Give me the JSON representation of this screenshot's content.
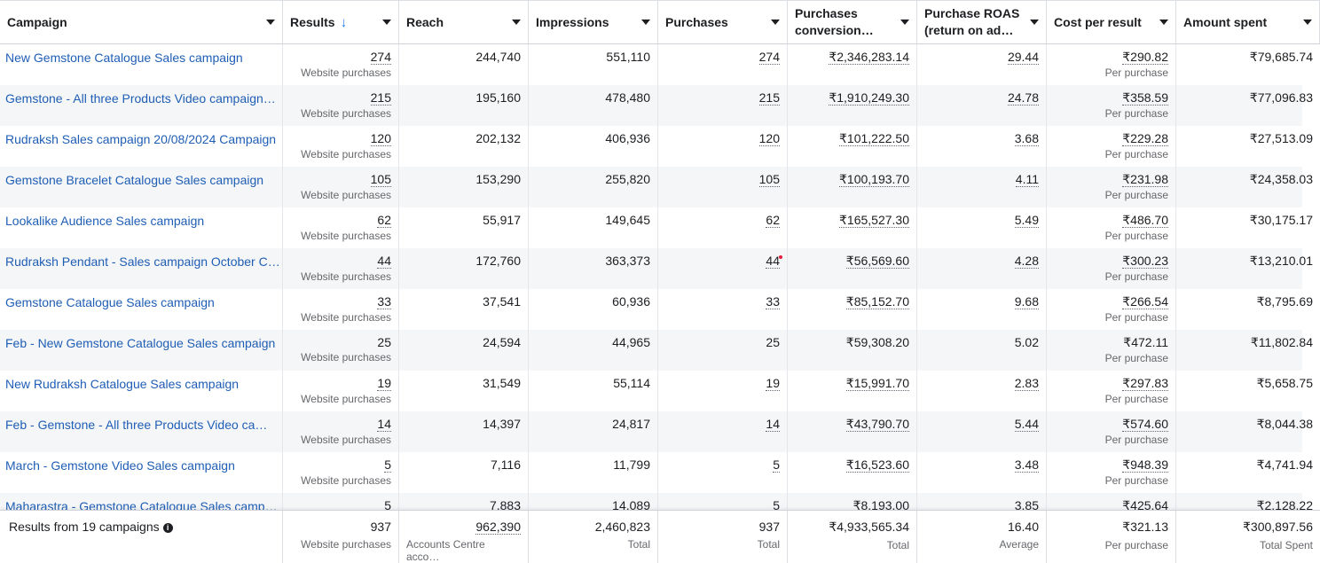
{
  "columns": [
    {
      "label": "Campaign"
    },
    {
      "label": "Results",
      "sort": "↓"
    },
    {
      "label": "Reach"
    },
    {
      "label": "Impressions"
    },
    {
      "label": "Purchases"
    },
    {
      "label": "Purchases conversion…"
    },
    {
      "label": "Purchase ROAS (return on ad…"
    },
    {
      "label": "Cost per result"
    },
    {
      "label": "Amount spent"
    }
  ],
  "rows": [
    {
      "campaign": "New Gemstone Catalogue Sales campaign",
      "results": "274",
      "results_sub": "Website purchases",
      "reach": "244,740",
      "impressions": "551,110",
      "purchases": "274",
      "conv": "₹2,346,283.14",
      "roas": "29.44",
      "cpr": "₹290.82",
      "cpr_sub": "Per purchase",
      "spent": "₹79,685.74"
    },
    {
      "campaign": "Gemstone - All three Products Video campaign…",
      "results": "215",
      "results_sub": "Website purchases",
      "reach": "195,160",
      "impressions": "478,480",
      "purchases": "215",
      "conv": "₹1,910,249.30",
      "roas": "24.78",
      "cpr": "₹358.59",
      "cpr_sub": "Per purchase",
      "spent": "₹77,096.83"
    },
    {
      "campaign": "Rudraksh Sales campaign 20/08/2024 Campaign",
      "results": "120",
      "results_sub": "Website purchases",
      "reach": "202,132",
      "impressions": "406,936",
      "purchases": "120",
      "conv": "₹101,222.50",
      "roas": "3.68",
      "cpr": "₹229.28",
      "cpr_sub": "Per purchase",
      "spent": "₹27,513.09"
    },
    {
      "campaign": "Gemstone Bracelet Catalogue Sales campaign",
      "results": "105",
      "results_sub": "Website purchases",
      "reach": "153,290",
      "impressions": "255,820",
      "purchases": "105",
      "conv": "₹100,193.70",
      "roas": "4.11",
      "cpr": "₹231.98",
      "cpr_sub": "Per purchase",
      "spent": "₹24,358.03"
    },
    {
      "campaign": "Lookalike Audience Sales campaign",
      "results": "62",
      "results_sub": "Website purchases",
      "reach": "55,917",
      "impressions": "149,645",
      "purchases": "62",
      "conv": "₹165,527.30",
      "roas": "5.49",
      "cpr": "₹486.70",
      "cpr_sub": "Per purchase",
      "spent": "₹30,175.17"
    },
    {
      "campaign": "Rudraksh Pendant - Sales campaign October C…",
      "results": "44",
      "results_sub": "Website purchases",
      "reach": "172,760",
      "impressions": "363,373",
      "purchases": "44",
      "conv": "₹56,569.60",
      "roas": "4.28",
      "cpr": "₹300.23",
      "cpr_sub": "Per purchase",
      "spent": "₹13,210.01"
    },
    {
      "campaign": "Gemstone Catalogue Sales campaign",
      "results": "33",
      "results_sub": "Website purchases",
      "reach": "37,541",
      "impressions": "60,936",
      "purchases": "33",
      "conv": "₹85,152.70",
      "roas": "9.68",
      "cpr": "₹266.54",
      "cpr_sub": "Per purchase",
      "spent": "₹8,795.69"
    },
    {
      "campaign": "Feb - New Gemstone Catalogue Sales campaign",
      "results": "25",
      "results_sub": "Website purchases",
      "reach": "24,594",
      "impressions": "44,965",
      "purchases": "25",
      "conv": "₹59,308.20",
      "roas": "5.02",
      "cpr": "₹472.11",
      "cpr_sub": "Per purchase",
      "spent": "₹11,802.84"
    },
    {
      "campaign": "New Rudraksh Catalogue Sales campaign",
      "results": "19",
      "results_sub": "Website purchases",
      "reach": "31,549",
      "impressions": "55,114",
      "purchases": "19",
      "conv": "₹15,991.70",
      "roas": "2.83",
      "cpr": "₹297.83",
      "cpr_sub": "Per purchase",
      "spent": "₹5,658.75"
    },
    {
      "campaign": "Feb - Gemstone - All three Products Video ca…",
      "results": "14",
      "results_sub": "Website purchases",
      "reach": "14,397",
      "impressions": "24,817",
      "purchases": "14",
      "conv": "₹43,790.70",
      "roas": "5.44",
      "cpr": "₹574.60",
      "cpr_sub": "Per purchase",
      "spent": "₹8,044.38"
    },
    {
      "campaign": "March - Gemstone Video Sales campaign",
      "results": "5",
      "results_sub": "Website purchases",
      "reach": "7,116",
      "impressions": "11,799",
      "purchases": "5",
      "conv": "₹16,523.60",
      "roas": "3.48",
      "cpr": "₹948.39",
      "cpr_sub": "Per purchase",
      "spent": "₹4,741.94"
    },
    {
      "campaign": "Maharastra - Gemstone Catalogue Sales camp…",
      "results": "5",
      "results_sub": "",
      "reach": "7,883",
      "impressions": "14,089",
      "purchases": "5",
      "conv": "₹8,193.00",
      "roas": "3.85",
      "cpr": "₹425.64",
      "cpr_sub": "",
      "spent": "₹2,128.22"
    }
  ],
  "footer": {
    "label": "Results from 19 campaigns",
    "results": "937",
    "results_sub": "Website purchases",
    "reach": "962,390",
    "reach_sub": "Accounts Centre acco…",
    "impressions": "2,460,823",
    "impressions_sub": "Total",
    "purchases": "937",
    "purchases_sub": "Total",
    "conv": "₹4,933,565.34",
    "conv_sub": "Total",
    "roas": "16.40",
    "roas_sub": "Average",
    "cpr": "₹321.13",
    "cpr_sub": "Per purchase",
    "spent": "₹300,897.56",
    "spent_sub": "Total Spent"
  },
  "colors": {
    "link": "#1f5eb5",
    "alt_row": "#f5f6f7",
    "sort_icon": "#1877f2"
  }
}
